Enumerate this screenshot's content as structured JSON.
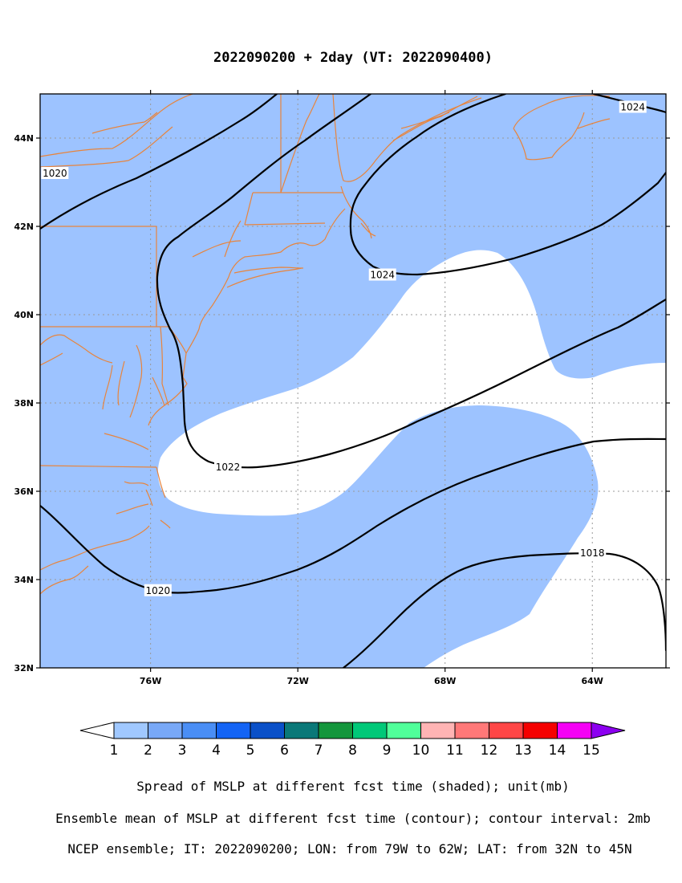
{
  "title": "2022090200 + 2day (VT: 2022090400)",
  "map": {
    "lon_range": [
      -79,
      -62
    ],
    "lat_range": [
      32,
      45
    ],
    "lat_ticks": [
      {
        "value": 44,
        "label": "44N"
      },
      {
        "value": 42,
        "label": "42N"
      },
      {
        "value": 40,
        "label": "40N"
      },
      {
        "value": 38,
        "label": "38N"
      },
      {
        "value": 36,
        "label": "36N"
      },
      {
        "value": 34,
        "label": "34N"
      },
      {
        "value": 32,
        "label": "32N"
      }
    ],
    "lon_ticks": [
      {
        "value": -76,
        "label": "76W"
      },
      {
        "value": -72,
        "label": "72W"
      },
      {
        "value": -68,
        "label": "68W"
      },
      {
        "value": -64,
        "label": "64W"
      }
    ],
    "grid": true,
    "shading_color": "#9dc3ff",
    "coastline_color": "#e8843c",
    "contour_labels": [
      {
        "text": "1020",
        "lon": -78.6,
        "lat": 43.2
      },
      {
        "text": "1024",
        "lon": -69.7,
        "lat": 40.9
      },
      {
        "text": "1024",
        "lon": -62.9,
        "lat": 44.7
      },
      {
        "text": "1022",
        "lon": -73.9,
        "lat": 36.55
      },
      {
        "text": "1020",
        "lon": -75.8,
        "lat": 33.75
      },
      {
        "text": "1018",
        "lon": -64.0,
        "lat": 34.6
      }
    ]
  },
  "colorbar": {
    "labels": [
      "1",
      "2",
      "3",
      "4",
      "5",
      "6",
      "7",
      "8",
      "9",
      "10",
      "11",
      "12",
      "13",
      "14",
      "15"
    ],
    "colors": [
      "#a0c8ff",
      "#78a8f7",
      "#4a8ef5",
      "#1464f5",
      "#0a50c8",
      "#0a7878",
      "#14963c",
      "#00c878",
      "#50ff9a",
      "#ffb4b4",
      "#ff7878",
      "#ff4646",
      "#f50000",
      "#f500f5",
      "#8c00f0"
    ],
    "low_end_color": "#ffffff"
  },
  "captions": [
    "Spread of MSLP at different fcst time (shaded); unit(mb)",
    "Ensemble mean of MSLP at different fcst time (contour); contour interval: 2mb",
    "NCEP ensemble; IT: 2022090200; LON: from 79W to 62W; LAT: from 32N to 45N"
  ]
}
